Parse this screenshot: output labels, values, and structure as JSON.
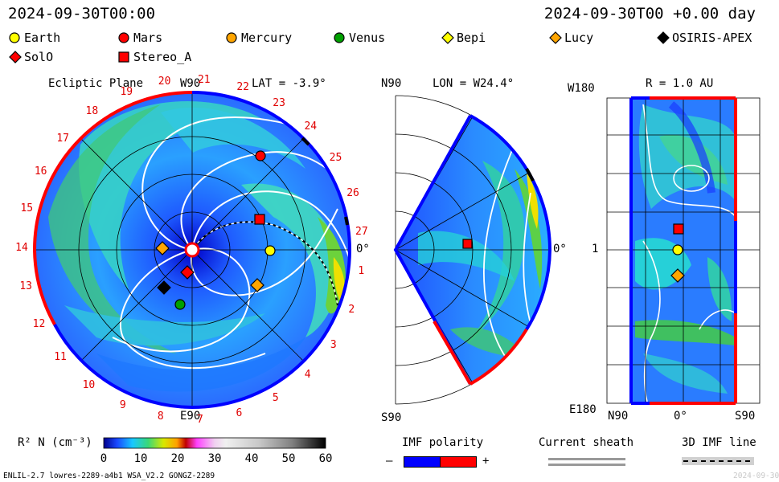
{
  "header": {
    "time_left": "2024-09-30T00:00",
    "time_right": "2024-09-30T00 +0.00 day"
  },
  "legend": {
    "items": [
      {
        "label": "Earth",
        "marker": "circle",
        "color": "#ffff00"
      },
      {
        "label": "Mars",
        "marker": "circle",
        "color": "#ff0000"
      },
      {
        "label": "Mercury",
        "marker": "circle",
        "color": "#ffa500"
      },
      {
        "label": "Venus",
        "marker": "circle",
        "color": "#00a000"
      },
      {
        "label": "Bepi",
        "marker": "diamond",
        "color": "#ffff00"
      },
      {
        "label": "Lucy",
        "marker": "diamond",
        "color": "#ffa500"
      },
      {
        "label": "OSIRIS-APEX",
        "marker": "diamond",
        "color": "#000000"
      },
      {
        "label": "SolO",
        "marker": "diamond",
        "color": "#ff0000"
      },
      {
        "label": "Stereo_A",
        "marker": "square",
        "color": "#ff0000"
      }
    ]
  },
  "panels": {
    "ecliptic": {
      "title": "Ecliptic Plane",
      "top_label": "W90",
      "bottom_label": "E90",
      "right_label": "0°",
      "lat_label": "LAT = -3.9°",
      "carrington_ticks": [
        "27",
        "1",
        "2",
        "3",
        "4",
        "5",
        "6",
        "7",
        "8",
        "9",
        "10",
        "11",
        "12",
        "13",
        "14",
        "15",
        "16",
        "17",
        "18",
        "19",
        "20",
        "21",
        "22",
        "23",
        "24",
        "25",
        "26"
      ]
    },
    "meridional": {
      "top_left_label": "N90",
      "lon_label": "LON = W24.4°",
      "bottom_label": "S90",
      "right_label": "0°"
    },
    "radial": {
      "top_left_label": "W180",
      "r_label": "R = 1.0 AU",
      "left_mid_label": "1",
      "bottom_left_label": "E180",
      "x_labels": [
        "N90",
        "0°",
        "S90"
      ]
    }
  },
  "colorbar": {
    "label": "R² N (cm⁻³)",
    "ticks": [
      "0",
      "10",
      "20",
      "30",
      "40",
      "50",
      "60"
    ],
    "range": [
      0,
      60
    ]
  },
  "imf_legend": {
    "title": "IMF polarity",
    "minus": "–",
    "plus": "+",
    "colors": [
      "#0000ff",
      "#ff0000"
    ]
  },
  "sheath_legend": {
    "title": "Current sheath"
  },
  "imf3d_legend": {
    "title": "3D IMF line"
  },
  "footer": {
    "left": "ENLIL-2.7 lowres-2289-a4b1 WSA_V2.2 GONGZ-2289",
    "right": "2024-09-30"
  },
  "chart_data": {
    "type": "heatmap",
    "title": "",
    "xlabel": "",
    "ylabel": "",
    "quantity": "R² N (cm⁻³)",
    "value_range": [
      0,
      60
    ],
    "objects_ecliptic": [
      {
        "name": "Earth",
        "panel": "ecliptic"
      },
      {
        "name": "Mars",
        "panel": "ecliptic"
      },
      {
        "name": "Mercury",
        "panel": "ecliptic"
      },
      {
        "name": "Venus",
        "panel": "ecliptic"
      },
      {
        "name": "Lucy",
        "panel": "ecliptic"
      },
      {
        "name": "OSIRIS-APEX",
        "panel": "ecliptic"
      },
      {
        "name": "SolO",
        "panel": "ecliptic"
      },
      {
        "name": "Stereo_A",
        "panel": "ecliptic"
      }
    ]
  }
}
